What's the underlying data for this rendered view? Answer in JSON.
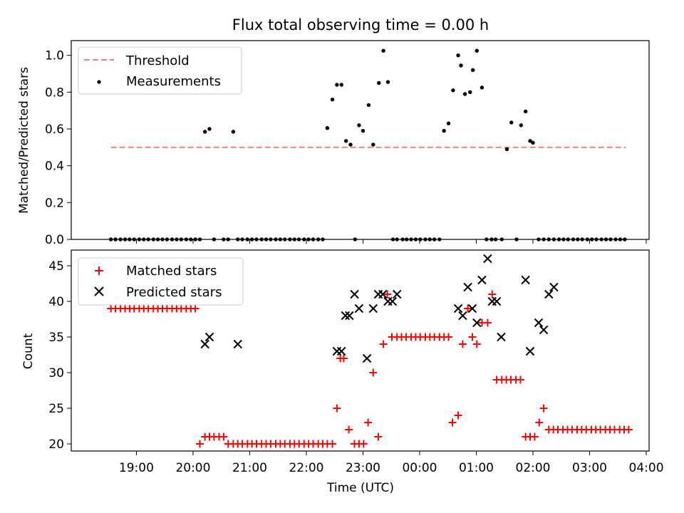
{
  "figure": {
    "title": "Flux total observing time = 0.00 h",
    "xlabel": "Time (UTC)",
    "x_tick_labels": [
      "19:00",
      "20:00",
      "21:00",
      "22:00",
      "23:00",
      "00:00",
      "01:00",
      "02:00",
      "03:00",
      "04:00"
    ]
  },
  "colors": {
    "threshold": "#ff7f7f",
    "measurements": "#000000",
    "matched": "#ff0000",
    "predicted": "#000000"
  },
  "chart_data": [
    {
      "type": "scatter",
      "ylabel": "Matched/Predicted stars",
      "x_unit": "hours since 18:00 UTC (axis shows clock time)",
      "xlim": [
        17.85,
        28.05
      ],
      "ylim": [
        0.0,
        1.08
      ],
      "y_ticks": [
        "0.0",
        "0.2",
        "0.4",
        "0.6",
        "0.8",
        "1.0"
      ],
      "legend": {
        "position": "top-left",
        "entries": [
          "Threshold",
          "Measurements"
        ]
      },
      "threshold": {
        "name": "Threshold",
        "value": 0.5,
        "x": [
          18.55,
          27.64
        ]
      },
      "measurements": {
        "name": "Measurements",
        "x": [
          18.55,
          18.63,
          18.72,
          18.8,
          18.88,
          18.96,
          19.05,
          19.13,
          19.21,
          19.3,
          19.38,
          19.46,
          19.54,
          19.63,
          19.71,
          19.79,
          19.88,
          19.96,
          20.04,
          20.12,
          20.21,
          20.29,
          20.37,
          20.54,
          20.62,
          20.71,
          20.79,
          20.87,
          20.96,
          21.04,
          21.12,
          21.21,
          21.29,
          21.37,
          21.46,
          21.54,
          21.62,
          21.71,
          21.79,
          21.87,
          21.96,
          22.04,
          22.12,
          22.21,
          22.29,
          22.37,
          22.46,
          22.54,
          22.62,
          22.7,
          22.78,
          22.86,
          22.93,
          23.0,
          23.1,
          23.18,
          23.28,
          23.36,
          23.44,
          23.53,
          23.6,
          23.7,
          23.77,
          23.85,
          23.93,
          24.01,
          24.1,
          24.18,
          24.26,
          24.35,
          24.43,
          24.51,
          24.59,
          24.68,
          24.73,
          24.8,
          24.89,
          24.94,
          25.01,
          25.1,
          25.18,
          25.27,
          25.34,
          25.45,
          25.54,
          25.62,
          25.71,
          25.79,
          25.87,
          25.95,
          26.0,
          26.1,
          26.19,
          26.28,
          26.37,
          26.46,
          26.54,
          26.62,
          26.71,
          26.79,
          26.87,
          26.96,
          27.04,
          27.12,
          27.21,
          27.29,
          27.37,
          27.46,
          27.54,
          27.62
        ],
        "y": [
          0,
          0,
          0,
          0,
          0,
          0,
          0,
          0,
          0,
          0,
          0,
          0,
          0,
          0,
          0,
          0,
          0,
          0,
          0,
          0,
          0.585,
          0.6,
          0,
          0,
          0,
          0.585,
          0,
          0,
          0,
          0,
          0,
          0,
          0,
          0,
          0,
          0,
          0,
          0,
          0,
          0,
          0,
          0,
          0,
          0,
          0,
          0.605,
          0.76,
          0.84,
          0.84,
          0.535,
          0.515,
          0,
          0.62,
          0.59,
          0.73,
          0.515,
          0.85,
          1.025,
          0.855,
          0,
          0,
          0,
          0,
          0,
          0,
          0,
          0,
          0,
          0,
          0,
          0.59,
          0.63,
          0.81,
          1.0,
          0.945,
          0.79,
          0.8,
          0.92,
          1.025,
          0.825,
          0,
          0,
          0,
          0,
          0.49,
          0.635,
          0,
          0.62,
          0.695,
          0.535,
          0.525,
          0,
          0,
          0,
          0,
          0,
          0,
          0,
          0,
          0,
          0,
          0,
          0,
          0,
          0,
          0,
          0,
          0,
          0,
          0
        ]
      }
    },
    {
      "type": "scatter",
      "ylabel": "Count",
      "x_unit": "hours since 18:00 UTC (axis shows clock time)",
      "xlim": [
        17.85,
        28.05
      ],
      "ylim": [
        19.0,
        47.2
      ],
      "y_ticks": [
        "20",
        "25",
        "30",
        "35",
        "40",
        "45"
      ],
      "legend": {
        "position": "top-left",
        "entries": [
          "Matched stars",
          "Predicted stars"
        ]
      },
      "series": [
        {
          "name": "Matched stars",
          "marker": "plus",
          "x": [
            18.55,
            18.63,
            18.72,
            18.8,
            18.88,
            18.96,
            19.05,
            19.13,
            19.21,
            19.3,
            19.38,
            19.46,
            19.54,
            19.63,
            19.71,
            19.79,
            19.88,
            19.96,
            20.04,
            20.12,
            20.21,
            20.29,
            20.37,
            20.46,
            20.54,
            20.62,
            20.71,
            20.79,
            20.87,
            20.96,
            21.04,
            21.12,
            21.21,
            21.29,
            21.37,
            21.46,
            21.54,
            21.62,
            21.71,
            21.79,
            21.87,
            21.96,
            22.04,
            22.12,
            22.21,
            22.29,
            22.37,
            22.46,
            22.54,
            22.6,
            22.66,
            22.75,
            22.85,
            22.93,
            23.01,
            23.09,
            23.18,
            23.27,
            23.36,
            23.43,
            23.51,
            23.6,
            23.68,
            23.76,
            23.85,
            23.93,
            24.01,
            24.1,
            24.18,
            24.26,
            24.35,
            24.43,
            24.51,
            24.58,
            24.68,
            24.76,
            24.85,
            24.93,
            25.01,
            25.1,
            25.2,
            25.28,
            25.36,
            25.45,
            25.53,
            25.61,
            25.7,
            25.78,
            25.87,
            25.95,
            26.03,
            26.11,
            26.19,
            26.28,
            26.36,
            26.44,
            26.53,
            26.61,
            26.69,
            26.78,
            26.86,
            26.94,
            27.03,
            27.11,
            27.19,
            27.28,
            27.36,
            27.44,
            27.53,
            27.61,
            27.69
          ],
          "y": [
            39,
            39,
            39,
            39,
            39,
            39,
            39,
            39,
            39,
            39,
            39,
            39,
            39,
            39,
            39,
            39,
            39,
            39,
            39,
            20,
            21,
            21,
            21,
            21,
            21,
            20,
            20,
            20,
            20,
            20,
            20,
            20,
            20,
            20,
            20,
            20,
            20,
            20,
            20,
            20,
            20,
            20,
            20,
            20,
            20,
            20,
            20,
            20,
            25,
            32,
            32,
            22,
            20,
            20,
            20,
            23,
            30,
            21,
            34,
            41,
            35,
            35,
            35,
            35,
            35,
            35,
            35,
            35,
            35,
            35,
            35,
            35,
            35,
            23,
            24,
            34,
            39,
            35,
            34,
            37,
            37,
            41,
            29,
            29,
            29,
            29,
            29,
            29,
            21,
            21,
            21,
            23,
            25,
            22,
            22,
            22,
            22,
            22,
            22,
            22,
            22,
            22,
            22,
            22,
            22,
            22,
            22,
            22,
            22,
            22,
            22
          ]
        },
        {
          "name": "Predicted stars",
          "marker": "x",
          "x": [
            20.21,
            20.29,
            20.79,
            22.54,
            22.62,
            22.69,
            22.76,
            22.85,
            22.93,
            23.07,
            23.18,
            23.27,
            23.35,
            23.44,
            23.52,
            23.6,
            24.68,
            24.76,
            24.85,
            24.93,
            25.01,
            25.1,
            25.2,
            25.28,
            25.36,
            25.44,
            25.87,
            25.95,
            26.1,
            26.19,
            26.28,
            26.37
          ],
          "y": [
            34,
            35,
            34,
            33,
            33,
            38,
            38,
            41,
            39,
            32,
            39,
            41,
            41,
            40,
            40,
            41,
            39,
            38,
            42,
            39,
            37,
            43,
            46,
            40,
            40,
            35,
            43,
            33,
            37,
            36,
            41,
            42
          ]
        }
      ]
    }
  ]
}
